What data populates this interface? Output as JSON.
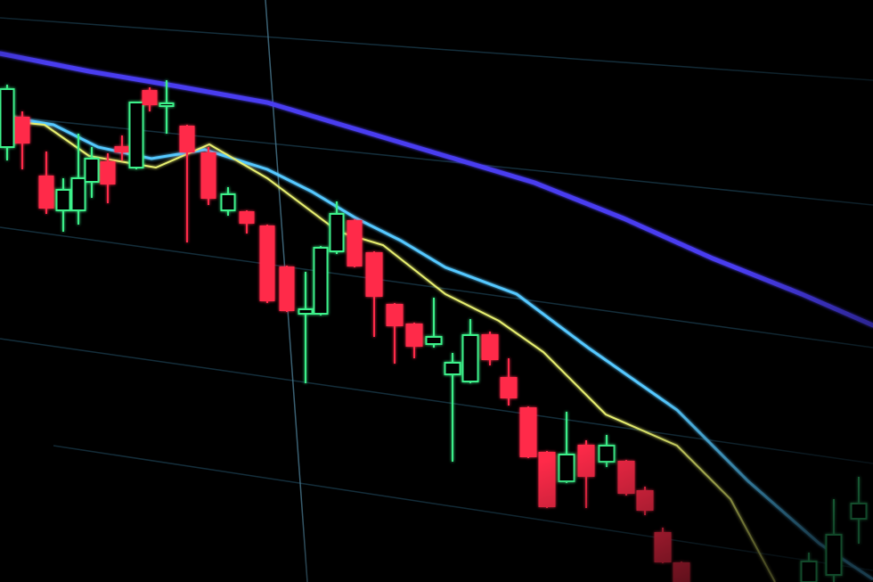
{
  "scene": {
    "description_type": "photo of candlestick chart on screen",
    "colors": {
      "background": "#000000",
      "bullish": "#3df08a",
      "bearish": "#ff2a4a",
      "ma_long": "#4a3cf0",
      "ma_mid": "#55c8ff",
      "ma_short": "#e8f070",
      "grid": "#1a3a4a"
    }
  }
}
